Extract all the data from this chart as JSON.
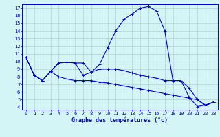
{
  "title": "Graphe des températures (°c)",
  "hours": [
    0,
    1,
    2,
    3,
    4,
    5,
    6,
    7,
    8,
    9,
    10,
    11,
    12,
    13,
    14,
    15,
    16,
    17,
    18,
    19,
    20,
    21,
    22,
    23
  ],
  "curve1": [
    10.5,
    8.2,
    7.5,
    8.7,
    9.8,
    9.9,
    9.8,
    8.2,
    8.6,
    9.6,
    11.8,
    14.0,
    15.5,
    16.2,
    17.0,
    17.2,
    16.6,
    14.0,
    7.5,
    7.5,
    5.3,
    4.1,
    4.3,
    4.7
  ],
  "curve2": [
    10.5,
    8.2,
    7.5,
    8.7,
    9.8,
    9.9,
    9.8,
    9.8,
    8.6,
    9.0,
    9.0,
    9.0,
    8.8,
    8.5,
    8.2,
    8.0,
    7.8,
    7.5,
    7.5,
    7.5,
    6.5,
    5.0,
    4.3,
    4.7
  ],
  "curve3": [
    10.5,
    8.2,
    7.5,
    8.7,
    8.0,
    7.7,
    7.5,
    7.5,
    7.5,
    7.3,
    7.2,
    7.0,
    6.8,
    6.6,
    6.4,
    6.2,
    6.0,
    5.8,
    5.6,
    5.4,
    5.2,
    5.0,
    4.2,
    4.7
  ],
  "line_color": "#0000cc",
  "bg_color": "#d4f5f5",
  "grid_color": "#b0d0d0",
  "ylim_min": 3.7,
  "ylim_max": 17.5,
  "xlim_min": -0.5,
  "xlim_max": 23.5,
  "yticks": [
    4,
    5,
    6,
    7,
    8,
    9,
    10,
    11,
    12,
    13,
    14,
    15,
    16,
    17
  ],
  "tick_fontsize": 5.0,
  "xlabel_fontsize": 6.0
}
